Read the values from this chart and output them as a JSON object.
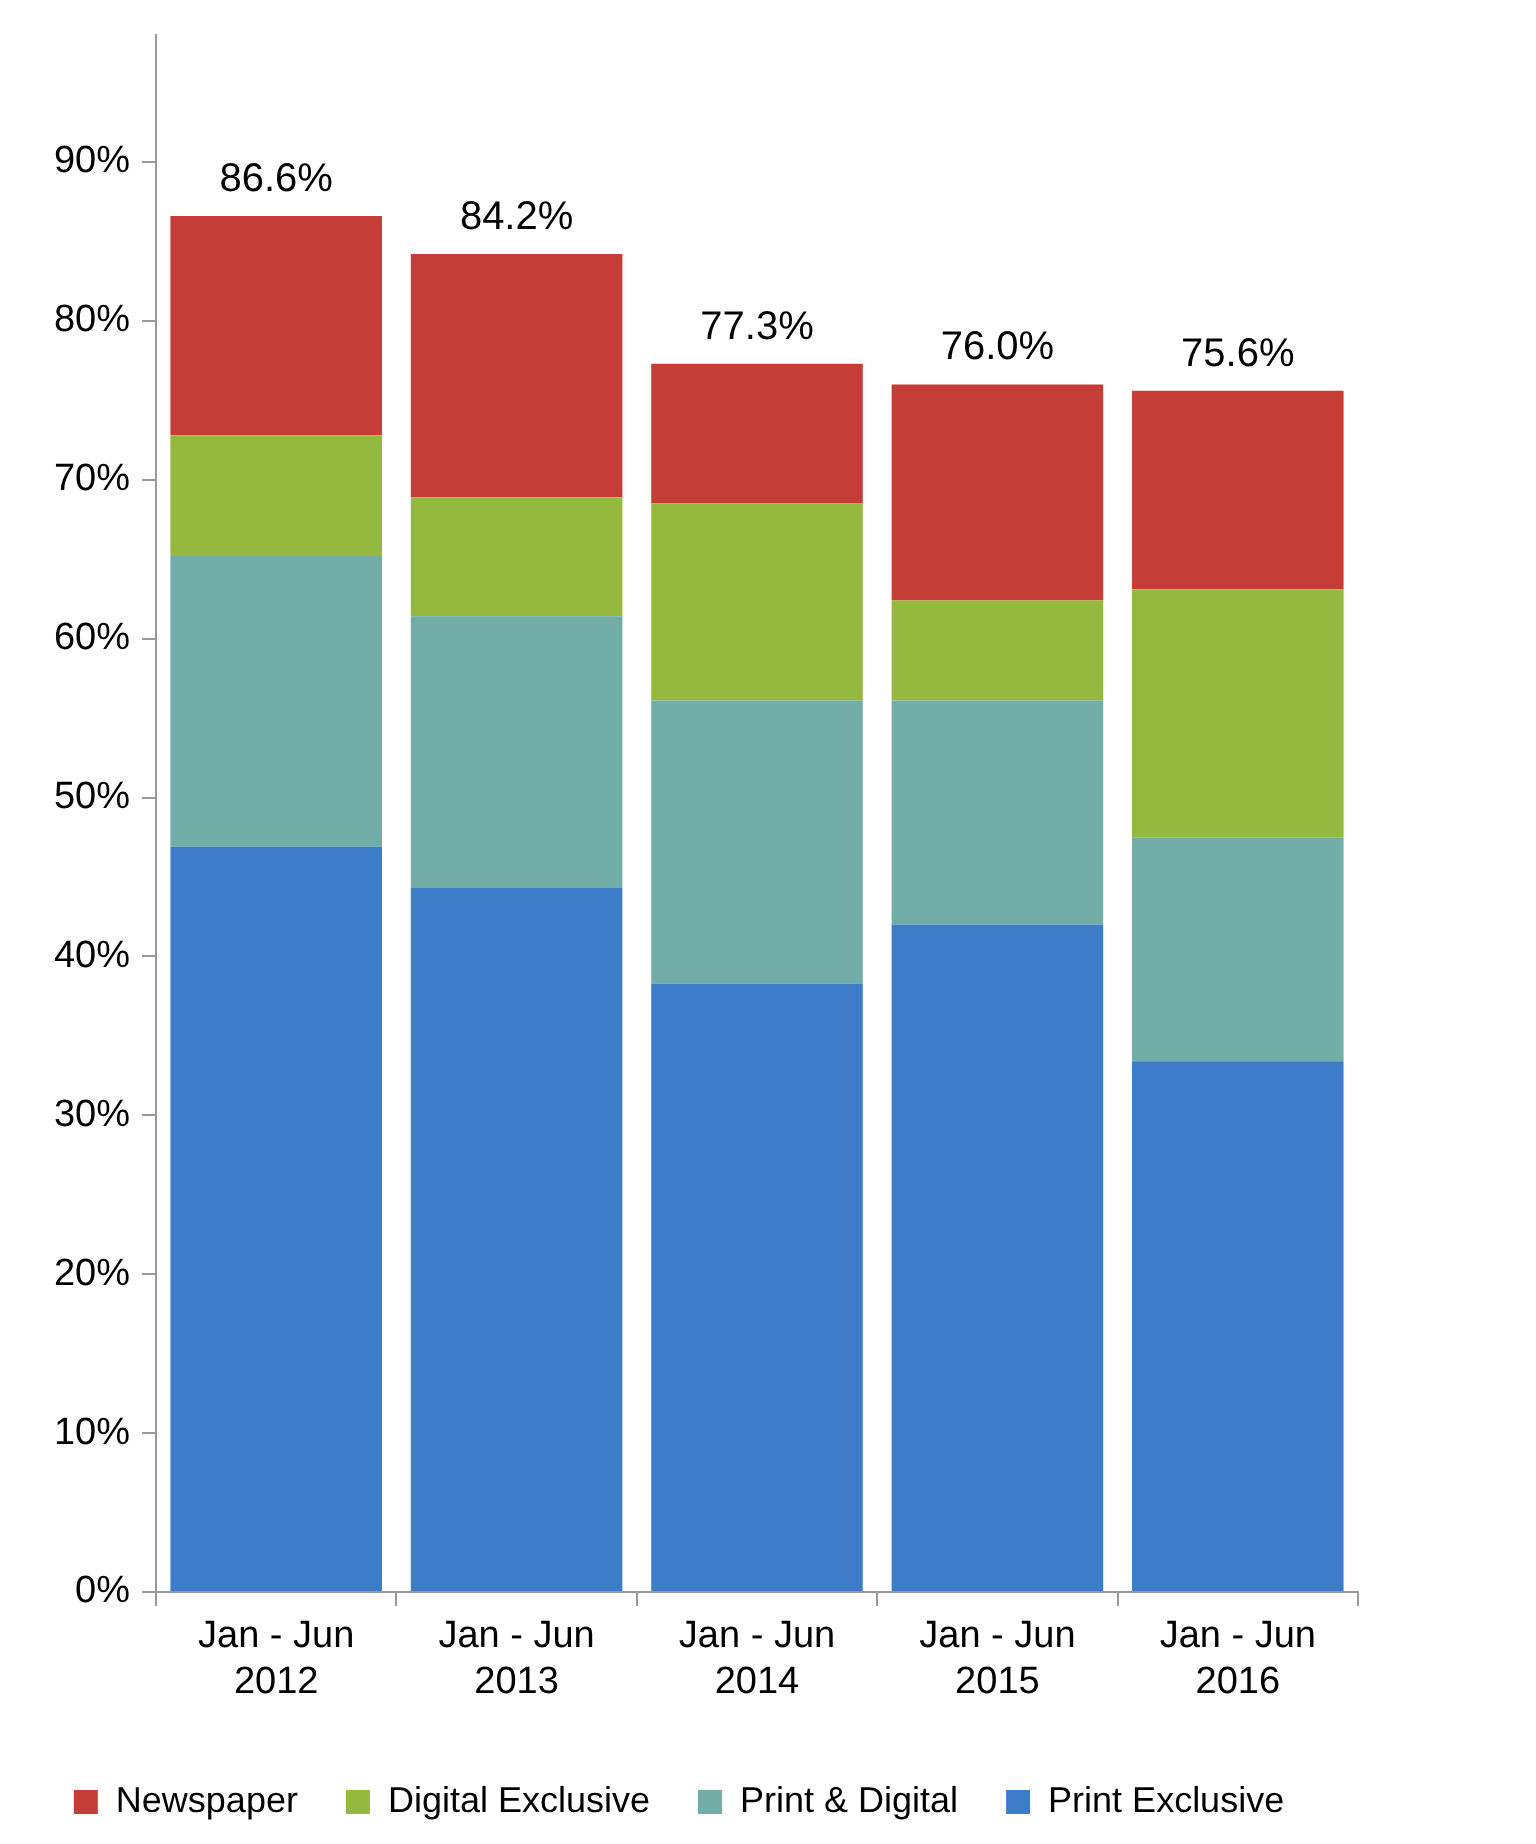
{
  "chart_data": {
    "type": "bar",
    "categories": [
      "Jan - Jun 2012",
      "Jan - Jun 2013",
      "Jan - Jun 2014",
      "Jan - Jun 2015",
      "Jan - Jun 2016"
    ],
    "series": [
      {
        "name": "Print Exclusive",
        "color": "#3d7cc9",
        "values": [
          46.9,
          44.3,
          38.3,
          42.0,
          33.4
        ]
      },
      {
        "name": "Print & Digital",
        "color": "#72ada8",
        "values": [
          18.3,
          17.1,
          17.8,
          14.1,
          14.1
        ]
      },
      {
        "name": "Digital Exclusive",
        "color": "#94b93e",
        "values": [
          7.6,
          7.5,
          12.4,
          6.3,
          15.6
        ]
      },
      {
        "name": "Newspaper",
        "color": "#c63c36",
        "values": [
          13.8,
          15.3,
          8.8,
          13.6,
          12.5
        ]
      }
    ],
    "stacked": true,
    "ylim": [
      0,
      98
    ],
    "yticks": [
      {
        "value": 0,
        "label": "0%"
      },
      {
        "value": 10,
        "label": "10%"
      },
      {
        "value": 20,
        "label": "20%"
      },
      {
        "value": 30,
        "label": "30%"
      },
      {
        "value": 40,
        "label": "40%"
      },
      {
        "value": 50,
        "label": "50%"
      },
      {
        "value": 60,
        "label": "60%"
      },
      {
        "value": 70,
        "label": "70%"
      },
      {
        "value": 80,
        "label": "80%"
      },
      {
        "value": 90,
        "label": "90%"
      }
    ],
    "legend": "bottom",
    "totals": [
      "86.6%",
      "84.2%",
      "77.3%",
      "76.0%",
      "75.6%"
    ]
  }
}
